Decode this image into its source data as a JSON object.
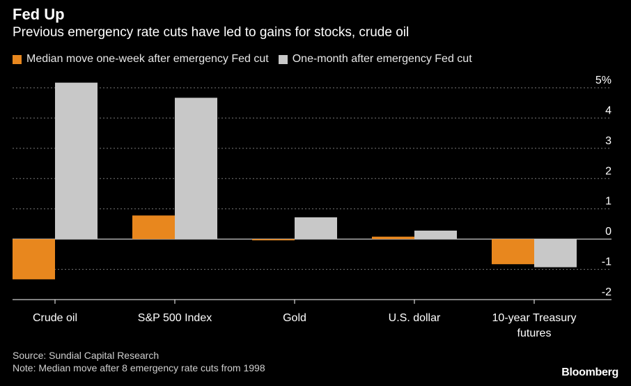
{
  "header": {
    "title": "Fed Up",
    "subtitle": "Previous emergency rate cuts have led to gains for stocks, crude oil"
  },
  "colors": {
    "series_one_week": "#e8871e",
    "series_one_month": "#c8c8c8",
    "background": "#000000",
    "gridline": "#7a7a7a"
  },
  "chart_data": {
    "type": "bar",
    "title": "Fed Up",
    "subtitle": "Previous emergency rate cuts have led to gains for stocks, crude oil",
    "categories": [
      "Crude oil",
      "S&P 500 Index",
      "Gold",
      "U.S. dollar",
      "10-year Treasury futures"
    ],
    "category_lines": [
      [
        "Crude oil"
      ],
      [
        "S&P 500 Index"
      ],
      [
        "Gold"
      ],
      [
        "U.S. dollar"
      ],
      [
        "10-year Treasury",
        "futures"
      ]
    ],
    "series": [
      {
        "name": "Median move one-week after emergency Fed cut",
        "values": [
          -1.33,
          0.78,
          -0.04,
          0.08,
          -0.83
        ]
      },
      {
        "name": "One-month after emergency Fed cut",
        "values": [
          5.17,
          4.67,
          0.72,
          0.28,
          -0.93
        ]
      }
    ],
    "ylim": [
      -2,
      5
    ],
    "yticks": [
      5,
      4,
      3,
      2,
      1,
      0,
      -1,
      -2
    ],
    "ytick_labels": [
      "5%",
      "4",
      "3",
      "2",
      "1",
      "0",
      "-1",
      "-2"
    ],
    "xlabel": "",
    "ylabel": "",
    "grid": true,
    "legend_position": "top-left"
  },
  "footer": {
    "source": "Source: Sundial Capital Research",
    "note": "Note: Median move after 8 emergency rate cuts from 1998",
    "brand": "Bloomberg"
  }
}
